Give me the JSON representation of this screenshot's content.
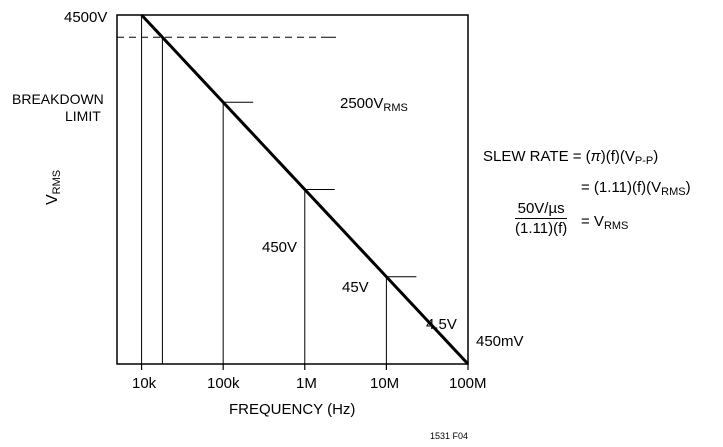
{
  "chart_data": {
    "type": "line",
    "xscale": "log",
    "yscale": "log",
    "xlim": [
      5000,
      100000000
    ],
    "ylim": [
      0.45,
      4500
    ],
    "x_tick_values": [
      10000,
      100000,
      1000000,
      10000000,
      100000000
    ],
    "x_tick_labels": [
      "10k",
      "100k",
      "1M",
      "10M",
      "100M"
    ],
    "xlabel": "FREQUENCY (Hz)",
    "ylabel_main": "V",
    "ylabel_sub": "RMS",
    "y_top_label": "4500V",
    "grid": false,
    "curve": {
      "description": "V_RMS = 45000000 / f",
      "points": [
        {
          "x": 10000,
          "y": 4500
        },
        {
          "x": 18000,
          "y": 2500
        },
        {
          "x": 100000,
          "y": 450
        },
        {
          "x": 1000000,
          "y": 45
        },
        {
          "x": 10000000,
          "y": 4.5
        },
        {
          "x": 100000000,
          "y": 0.45
        }
      ]
    },
    "breakdown": {
      "value": 2500,
      "label_line1": "BREAKDOWN",
      "label_line2": "LIMIT",
      "value_label_main": "2500V",
      "value_label_sub": "RMS"
    },
    "point_labels": [
      {
        "x": 100000,
        "y": 450,
        "text": "450V"
      },
      {
        "x": 1000000,
        "y": 45,
        "text": "45V"
      },
      {
        "x": 10000000,
        "y": 4.5,
        "text": "4.5V"
      },
      {
        "x": 100000000,
        "y": 0.45,
        "text": "450mV"
      }
    ]
  },
  "formula": {
    "line1_prefix": "SLEW RATE = (",
    "line1_pi": "π",
    "line1_mid": ")(f)(V",
    "line1_sub": "P-P",
    "line1_suffix": ")",
    "line2_prefix": "= (1.11)(f)(V",
    "line2_sub": "RMS",
    "line2_suffix": ")",
    "frac_num": "50V/µs",
    "frac_den": "(1.11)(f)",
    "frac_rhs_main": "= V",
    "frac_rhs_sub": "RMS"
  },
  "figure_id": "1531 F04"
}
